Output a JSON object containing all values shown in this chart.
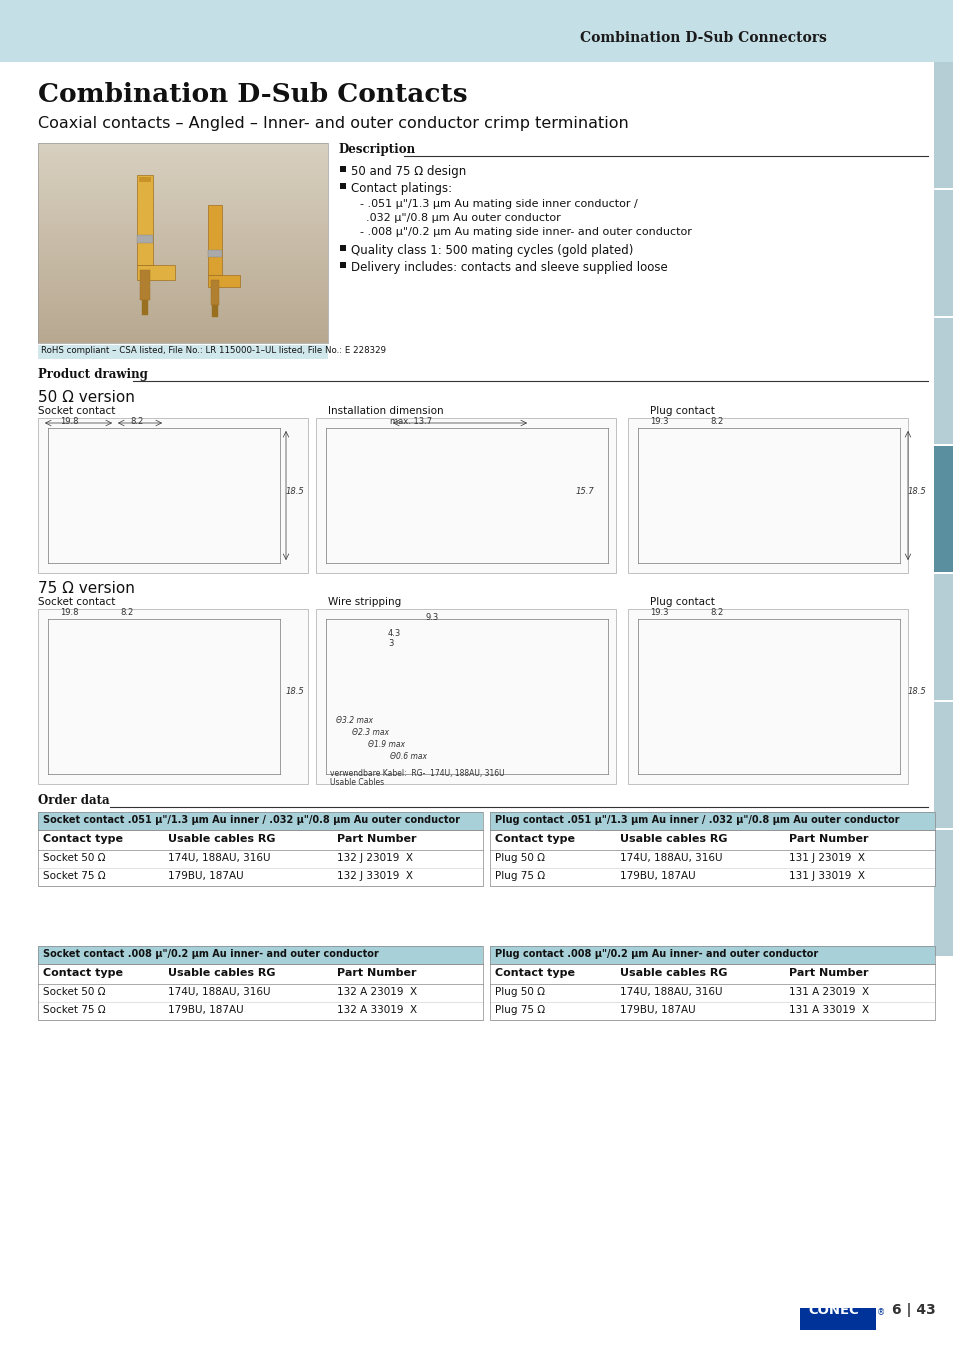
{
  "page_bg": "#ffffff",
  "header_bg": "#c5dfe6",
  "header_text": "Combination D-Sub Connectors",
  "title_main": "Combination D-Sub Contacts",
  "subtitle": "Coaxial contacts – Angled – Inner- and outer conductor crimp termination",
  "rohscsa_text": "RoHS compliant – CSA listed, File No.: LR 115000-1–UL listed, File No.: E 228329",
  "desc_title": "Description",
  "product_drawing_title": "Product drawing",
  "version_50_title": "50 Ω version",
  "version_75_title": "75 Ω version",
  "socket_contact_label": "Socket contact",
  "installation_dim_label": "Installation dimension",
  "wire_stripping_label": "Wire stripping",
  "plug_contact_label": "Plug contact",
  "order_data_title": "Order data",
  "table_header_bg": "#a8d0d8",
  "table1_title": "Socket contact .051 μ\"/1.3 μm Au inner / .032 μ\"/0.8 μm Au outer conductor",
  "table2_title": "Plug contact .051 μ\"/1.3 μm Au inner / .032 μ\"/0.8 μm Au outer conductor",
  "table3_title": "Socket contact .008 μ\"/0.2 μm Au inner- and outer conductor",
  "table4_title": "Plug contact .008 μ\"/0.2 μm Au inner- and outer conductor",
  "col_headers": [
    "Contact type",
    "Usable cables RG",
    "Part Number"
  ],
  "table1_rows": [
    [
      "Socket 50 Ω",
      "174U, 188AU, 316U",
      "132 J 23019  X"
    ],
    [
      "Socket 75 Ω",
      "179BU, 187AU",
      "132 J 33019  X"
    ]
  ],
  "table2_rows": [
    [
      "Plug 50 Ω",
      "174U, 188AU, 316U",
      "131 J 23019  X"
    ],
    [
      "Plug 75 Ω",
      "179BU, 187AU",
      "131 J 33019  X"
    ]
  ],
  "table3_rows": [
    [
      "Socket 50 Ω",
      "174U, 188AU, 316U",
      "132 A 23019  X"
    ],
    [
      "Socket 75 Ω",
      "179BU, 187AU",
      "132 A 33019  X"
    ]
  ],
  "table4_rows": [
    [
      "Plug 50 Ω",
      "174U, 188AU, 316U",
      "131 A 23019  X"
    ],
    [
      "Plug 75 Ω",
      "179BU, 187AU",
      "131 A 33019  X"
    ]
  ],
  "footer_page": "6 | 43",
  "right_tab_active_color": "#5a8fa0",
  "right_tab_inactive_color": "#b5cdd5",
  "tab_active_index": 3,
  "photo_bg": "#d8d0c0",
  "photo_grad_top": "#e8e0d0",
  "photo_grad_bot": "#b0a890",
  "rohscsa_bg": "#d0e8ec"
}
